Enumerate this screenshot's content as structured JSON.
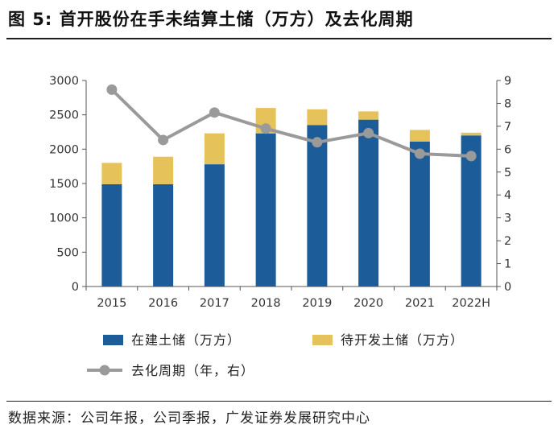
{
  "figure": {
    "title": "图 5: 首开股份在手未结算土储（万方）及去化周期",
    "source": "数据来源：公司年报，公司季报，广发证券发展研究中心"
  },
  "colors": {
    "built": "#1c5d99",
    "pending": "#e6c25a",
    "cycle": "#9a9a9a",
    "axis": "#555555"
  },
  "chart_data": {
    "type": "bar",
    "categories": [
      "2015",
      "2016",
      "2017",
      "2018",
      "2019",
      "2020",
      "2021",
      "2022H"
    ],
    "series": [
      {
        "name": "在建土储（万方）",
        "type": "bar",
        "stack": "reserve",
        "axis": "left",
        "values": [
          1490,
          1490,
          1780,
          2230,
          2350,
          2430,
          2110,
          2200
        ]
      },
      {
        "name": "待开发土储（万方）",
        "type": "bar",
        "stack": "reserve",
        "axis": "left",
        "values": [
          310,
          400,
          450,
          370,
          230,
          120,
          170,
          40
        ]
      },
      {
        "name": "去化周期（年，右）",
        "type": "line",
        "axis": "right",
        "values": [
          8.6,
          6.4,
          7.6,
          6.9,
          6.3,
          6.7,
          5.8,
          5.7
        ]
      }
    ],
    "y_left": {
      "min": 0,
      "max": 3000,
      "step": 500,
      "ticks": [
        "0",
        "500",
        "1000",
        "1500",
        "2000",
        "2500",
        "3000"
      ]
    },
    "y_right": {
      "min": 0,
      "max": 9,
      "step": 1,
      "ticks": [
        "0",
        "1",
        "2",
        "3",
        "4",
        "5",
        "6",
        "7",
        "8",
        "9"
      ]
    },
    "grid": false,
    "legend_position": "bottom"
  }
}
